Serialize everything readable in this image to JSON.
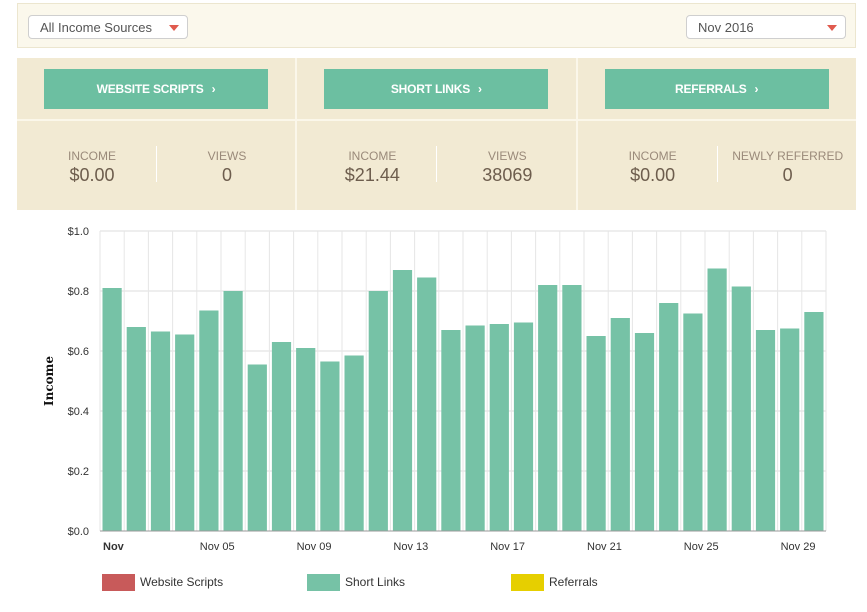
{
  "filters": {
    "source": "All Income Sources",
    "month": "Nov 2016"
  },
  "panels": [
    {
      "button": "WEBSITE SCRIPTS",
      "stat1_label": "INCOME",
      "stat1_value": "$0.00",
      "stat2_label": "VIEWS",
      "stat2_value": "0"
    },
    {
      "button": "SHORT LINKS",
      "stat1_label": "INCOME",
      "stat1_value": "$21.44",
      "stat2_label": "VIEWS",
      "stat2_value": "38069"
    },
    {
      "button": "REFERRALS",
      "stat1_label": "INCOME",
      "stat1_value": "$0.00",
      "stat2_label": "NEWLY REFERRED",
      "stat2_value": "0"
    }
  ],
  "chart_data": {
    "type": "bar",
    "ylabel": "Income",
    "ylim": [
      0,
      1.0
    ],
    "yticks": [
      "$0.0",
      "$0.2",
      "$0.4",
      "$0.6",
      "$0.8",
      "$1.0"
    ],
    "xtick_labels": [
      {
        "day": 1,
        "label": "Nov"
      },
      {
        "day": 5,
        "label": "Nov 05"
      },
      {
        "day": 9,
        "label": "Nov 09"
      },
      {
        "day": 13,
        "label": "Nov 13"
      },
      {
        "day": 17,
        "label": "Nov 17"
      },
      {
        "day": 21,
        "label": "Nov 21"
      },
      {
        "day": 25,
        "label": "Nov 25"
      },
      {
        "day": 29,
        "label": "Nov 29"
      }
    ],
    "categories": [
      1,
      2,
      3,
      4,
      5,
      6,
      7,
      8,
      9,
      10,
      11,
      12,
      13,
      14,
      15,
      16,
      17,
      18,
      19,
      20,
      21,
      22,
      23,
      24,
      25,
      26,
      27,
      28,
      29,
      30
    ],
    "series": [
      {
        "name": "Website Scripts",
        "color": "#c85a5a",
        "values": [
          0,
          0,
          0,
          0,
          0,
          0,
          0,
          0,
          0,
          0,
          0,
          0,
          0,
          0,
          0,
          0,
          0,
          0,
          0,
          0,
          0,
          0,
          0,
          0,
          0,
          0,
          0,
          0,
          0,
          0
        ]
      },
      {
        "name": "Short Links",
        "color": "#76c2a6",
        "values": [
          0.81,
          0.68,
          0.665,
          0.655,
          0.735,
          0.8,
          0.555,
          0.63,
          0.61,
          0.565,
          0.585,
          0.8,
          0.87,
          0.845,
          0.67,
          0.685,
          0.69,
          0.695,
          0.82,
          0.82,
          0.65,
          0.71,
          0.66,
          0.76,
          0.725,
          0.875,
          0.815,
          0.67,
          0.675,
          0.73
        ]
      },
      {
        "name": "Referrals",
        "color": "#e6cf00",
        "values": [
          0,
          0,
          0,
          0,
          0,
          0,
          0,
          0,
          0,
          0,
          0,
          0,
          0,
          0,
          0,
          0,
          0,
          0,
          0,
          0,
          0,
          0,
          0,
          0,
          0,
          0,
          0,
          0,
          0,
          0
        ]
      }
    ],
    "grid": true,
    "legend_position": "bottom"
  },
  "legend": [
    {
      "name": "Website Scripts",
      "color": "#c85a5a"
    },
    {
      "name": "Short Links",
      "color": "#76c2a6"
    },
    {
      "name": "Referrals",
      "color": "#e6cf00"
    }
  ]
}
